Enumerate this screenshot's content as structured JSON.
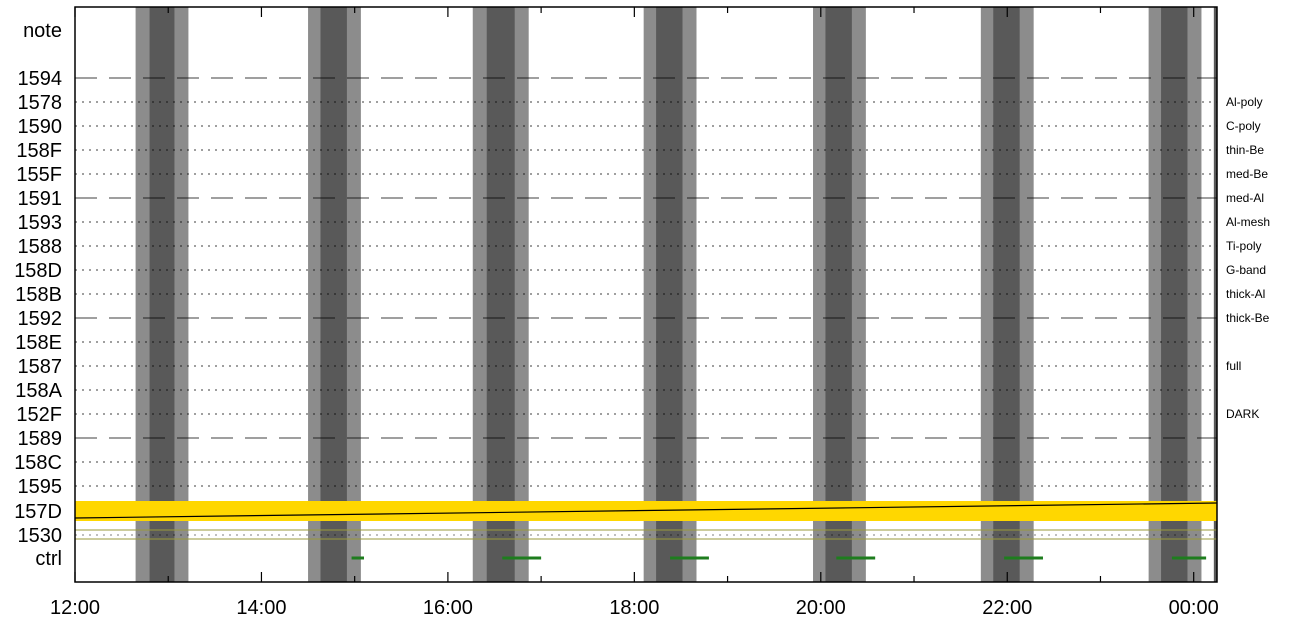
{
  "chart_data": {
    "type": "timeline",
    "title": "",
    "xlabel": "",
    "ylabel": "",
    "x_range": [
      "12:00",
      "00:15"
    ],
    "x_ticks": [
      "12:00",
      "14:00",
      "16:00",
      "18:00",
      "20:00",
      "22:00",
      "00:00"
    ],
    "rows": [
      {
        "label": "note",
        "line": "none",
        "right_label": ""
      },
      {
        "label": "1594",
        "line": "dashed",
        "right_label": ""
      },
      {
        "label": "1578",
        "line": "dotted",
        "right_label": "Al-poly"
      },
      {
        "label": "1590",
        "line": "dotted",
        "right_label": "C-poly"
      },
      {
        "label": "158F",
        "line": "dotted",
        "right_label": "thin-Be"
      },
      {
        "label": "155F",
        "line": "dotted",
        "right_label": "med-Be"
      },
      {
        "label": "1591",
        "line": "dashed",
        "right_label": "med-Al"
      },
      {
        "label": "1593",
        "line": "dotted",
        "right_label": "Al-mesh"
      },
      {
        "label": "1588",
        "line": "dotted",
        "right_label": "Ti-poly"
      },
      {
        "label": "158D",
        "line": "dotted",
        "right_label": "G-band"
      },
      {
        "label": "158B",
        "line": "dotted",
        "right_label": "thick-Al"
      },
      {
        "label": "1592",
        "line": "dashed",
        "right_label": "thick-Be"
      },
      {
        "label": "158E",
        "line": "dotted",
        "right_label": ""
      },
      {
        "label": "1587",
        "line": "dotted",
        "right_label": "full"
      },
      {
        "label": "158A",
        "line": "dotted",
        "right_label": ""
      },
      {
        "label": "152F",
        "line": "dotted",
        "right_label": "DARK"
      },
      {
        "label": "1589",
        "line": "dashed",
        "right_label": ""
      },
      {
        "label": "158C",
        "line": "dotted",
        "right_label": ""
      },
      {
        "label": "1595",
        "line": "dotted",
        "right_label": ""
      },
      {
        "label": "157D",
        "line": "none",
        "right_label": ""
      },
      {
        "label": "1530",
        "line": "none",
        "right_label": ""
      },
      {
        "label": "ctrl",
        "line": "none",
        "right_label": ""
      }
    ],
    "shaded_periods": [
      {
        "outer_start": "12:39",
        "inner_start": "12:48",
        "inner_end": "13:04",
        "outer_end": "13:13"
      },
      {
        "outer_start": "14:30",
        "inner_start": "14:38",
        "inner_end": "14:55",
        "outer_end": "15:04"
      },
      {
        "outer_start": "16:16",
        "inner_start": "16:25",
        "inner_end": "16:43",
        "outer_end": "16:52"
      },
      {
        "outer_start": "18:06",
        "inner_start": "18:14",
        "inner_end": "18:31",
        "outer_end": "18:40"
      },
      {
        "outer_start": "19:55",
        "inner_start": "20:03",
        "inner_end": "20:20",
        "outer_end": "20:29"
      },
      {
        "outer_start": "21:43",
        "inner_start": "21:51",
        "inner_end": "22:08",
        "outer_end": "22:17"
      },
      {
        "outer_start": "23:31",
        "inner_start": "23:39",
        "inner_end": "23:56",
        "outer_end": "00:05"
      },
      {
        "outer_start": "00:13",
        "inner_start": "00:13",
        "inner_end": "00:15",
        "outer_end": "00:15"
      }
    ],
    "active_band": {
      "row": "157D",
      "start": "12:00",
      "end": "00:15",
      "color": "#ffd700"
    },
    "trend_line": {
      "start": {
        "x": "12:00",
        "row_offset": 0.35
      },
      "end": {
        "x": "00:15",
        "row_offset": -0.4
      },
      "color": "#000000"
    },
    "row_1530_lines": {
      "color": "#9a9a3a"
    },
    "ctrl_marks": [
      {
        "start": "14:58",
        "end": "15:06"
      },
      {
        "start": "16:35",
        "end": "17:00"
      },
      {
        "start": "18:23",
        "end": "18:48"
      },
      {
        "start": "20:10",
        "end": "20:35"
      },
      {
        "start": "21:58",
        "end": "22:23"
      },
      {
        "start": "23:46",
        "end": "00:08"
      }
    ],
    "colors": {
      "shade_outer": "#8c8c8c",
      "shade_inner": "#595959",
      "ctrl_mark": "#1e7d1e",
      "grid": "#000000"
    }
  }
}
